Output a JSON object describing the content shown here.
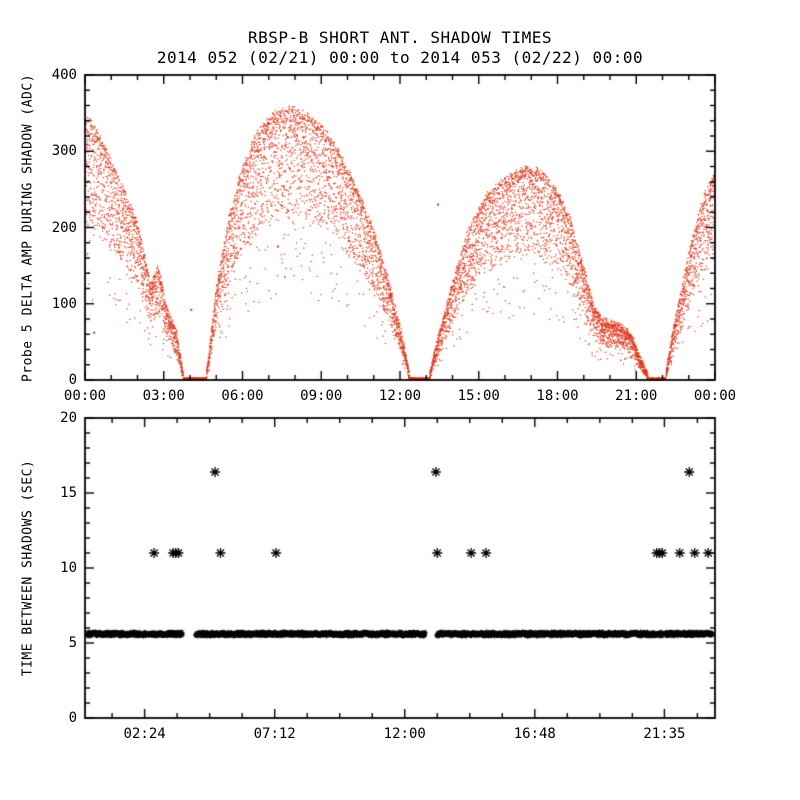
{
  "title": "RBSP-B SHORT ANT. SHADOW TIMES",
  "subtitle": "2014 052 (02/21) 00:00 to 2014 053 (02/22) 00:00",
  "accent_color": "#dc3518",
  "chart_data": [
    {
      "type": "scatter",
      "name": "probe5-delta-amp-during-shadow",
      "marker": "dot",
      "marker_color": "#dc3518",
      "xlabel": "",
      "ylabel": "Probe 5 DELTA AMP DURING SHADOW (ADC)",
      "xlim": [
        0,
        24
      ],
      "ylim": [
        0,
        400
      ],
      "xticks": [
        0,
        3,
        6,
        9,
        12,
        15,
        18,
        21,
        24
      ],
      "xtick_labels": [
        "00:00",
        "03:00",
        "06:00",
        "09:00",
        "12:00",
        "15:00",
        "18:00",
        "21:00",
        "00:00"
      ],
      "yticks": [
        0,
        100,
        200,
        300,
        400
      ],
      "ytick_labels": [
        "0",
        "100",
        "200",
        "300",
        "400"
      ],
      "xminor_step": 1,
      "yminor_step": 20,
      "grid": false,
      "legend": "none",
      "envelope_adc": [
        [
          0,
          350
        ],
        [
          0.4,
          330
        ],
        [
          0.9,
          295
        ],
        [
          1.4,
          255
        ],
        [
          2.0,
          205
        ],
        [
          2.5,
          125
        ],
        [
          2.8,
          148
        ],
        [
          3.1,
          95
        ],
        [
          3.5,
          60
        ],
        [
          3.75,
          5
        ],
        [
          3.8,
          0
        ],
        [
          4.6,
          0
        ],
        [
          4.75,
          40
        ],
        [
          5.0,
          120
        ],
        [
          5.5,
          215
        ],
        [
          6.0,
          280
        ],
        [
          6.6,
          325
        ],
        [
          7.2,
          348
        ],
        [
          7.8,
          356
        ],
        [
          8.4,
          350
        ],
        [
          9.0,
          332
        ],
        [
          9.6,
          305
        ],
        [
          10.3,
          255
        ],
        [
          11.0,
          195
        ],
        [
          11.6,
          125
        ],
        [
          12.1,
          55
        ],
        [
          12.35,
          8
        ],
        [
          12.4,
          0
        ],
        [
          13.1,
          0
        ],
        [
          13.25,
          25
        ],
        [
          13.6,
          75
        ],
        [
          14.0,
          125
        ],
        [
          14.6,
          195
        ],
        [
          15.3,
          242
        ],
        [
          16.0,
          263
        ],
        [
          16.8,
          278
        ],
        [
          17.4,
          272
        ],
        [
          18.0,
          248
        ],
        [
          18.5,
          208
        ],
        [
          19.0,
          148
        ],
        [
          19.4,
          95
        ],
        [
          19.7,
          78
        ],
        [
          20.3,
          72
        ],
        [
          20.8,
          60
        ],
        [
          21.1,
          32
        ],
        [
          21.45,
          5
        ],
        [
          21.5,
          0
        ],
        [
          22.1,
          0
        ],
        [
          22.3,
          45
        ],
        [
          22.7,
          115
        ],
        [
          23.2,
          195
        ],
        [
          23.6,
          242
        ],
        [
          24,
          272
        ]
      ],
      "band_fraction": 0.4,
      "outliers": [
        [
          7.35,
          175
        ],
        [
          13.45,
          230
        ],
        [
          4.05,
          92
        ],
        [
          0.35,
          62
        ]
      ]
    },
    {
      "type": "scatter",
      "name": "time-between-shadows",
      "marker": "asterisk",
      "marker_color": "#000000",
      "xlabel": "",
      "ylabel": "TIME BETWEEN SHADOWS (SEC)",
      "xlim": [
        0.2,
        23.45
      ],
      "ylim": [
        0,
        20
      ],
      "xticks": [
        2.4,
        7.2,
        12.0,
        16.8,
        21.583
      ],
      "xtick_labels": [
        "02:24",
        "07:12",
        "12:00",
        "16:48",
        "21:35"
      ],
      "yticks": [
        0,
        5,
        10,
        15,
        20
      ],
      "ytick_labels": [
        "0",
        "5",
        "10",
        "15",
        "20"
      ],
      "xminor_step": 1.2,
      "yminor_step": 1,
      "grid": false,
      "legend": "none",
      "band_sec": 5.6,
      "band_segments_hours": [
        [
          0.3,
          3.8
        ],
        [
          4.3,
          12.75
        ],
        [
          13.2,
          21.5
        ],
        [
          21.62,
          23.35
        ]
      ],
      "mid_cluster_sec": 11.0,
      "mid_cluster_hours": [
        2.75,
        3.45,
        3.55,
        3.65,
        5.2,
        7.25,
        13.2,
        14.45,
        15.0,
        21.3,
        21.4,
        21.5,
        22.15,
        22.7,
        23.2
      ],
      "high_points_sec": 16.4,
      "high_points_hours": [
        5.0,
        13.15,
        22.5
      ]
    }
  ]
}
